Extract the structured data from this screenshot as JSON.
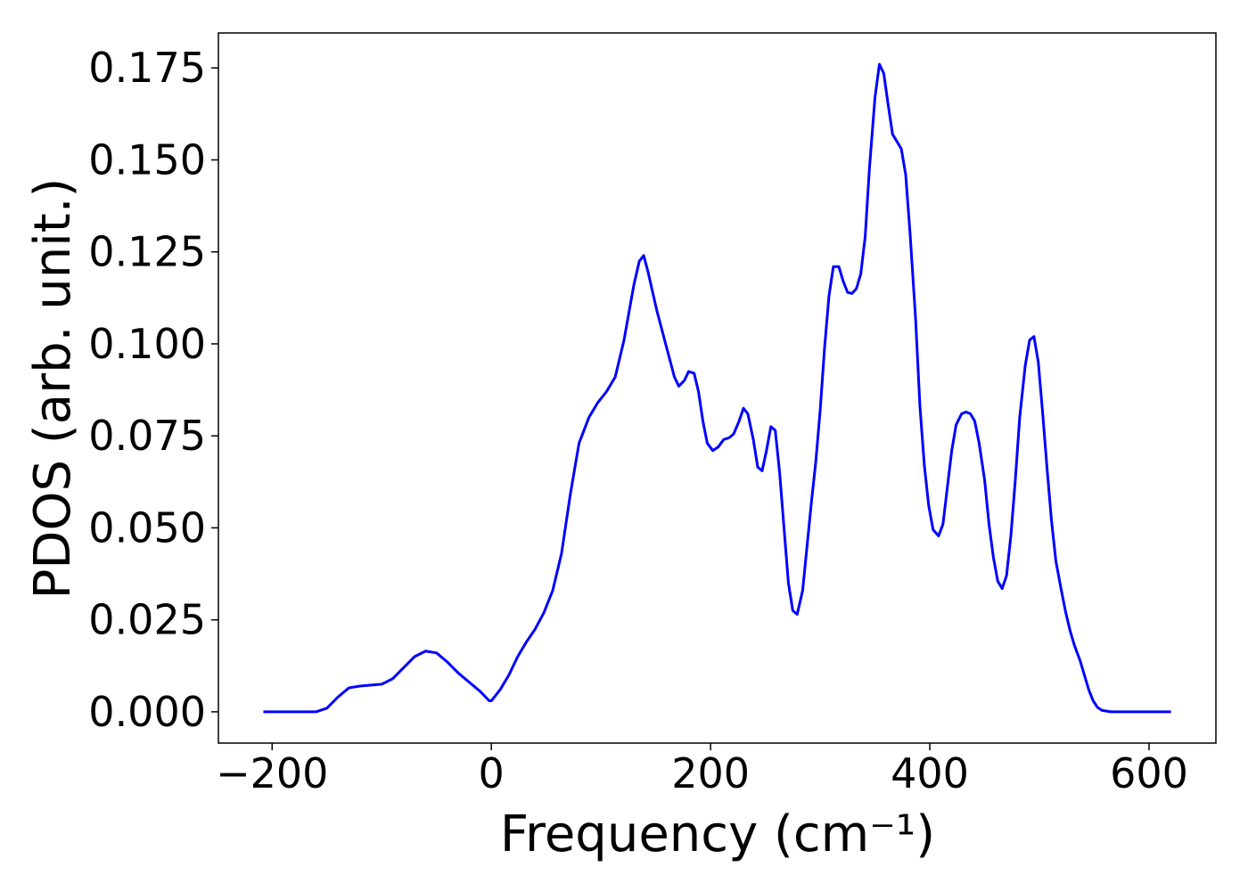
{
  "chart_data": {
    "type": "line",
    "xlabel": "Frequency (cm⁻¹)",
    "ylabel": "PDOS (arb. unit.)",
    "xlim": [
      -249,
      661
    ],
    "ylim": [
      -0.0085,
      0.1845
    ],
    "xticks": [
      {
        "value": -200,
        "label": "−200"
      },
      0,
      200,
      400,
      600
    ],
    "yticks": [
      {
        "value": 0,
        "label": "0.000"
      },
      0.025,
      {
        "value": 0.05,
        "label": "0.050"
      },
      0.075,
      {
        "value": 0.1,
        "label": "0.100"
      },
      0.125,
      {
        "value": 0.15,
        "label": "0.150"
      },
      0.175
    ],
    "grid": false,
    "x": [
      -208,
      -160,
      -150,
      -140,
      -130,
      -120,
      -100,
      -90,
      -80,
      -70,
      -60,
      -50,
      -40,
      -30,
      -20,
      -10,
      -2,
      0,
      8,
      16,
      24,
      32,
      40,
      48,
      56,
      64,
      72,
      80,
      89,
      97,
      105,
      113,
      121,
      130,
      135,
      139,
      143,
      151,
      159,
      167,
      171,
      176,
      180,
      185,
      189,
      193,
      197,
      202,
      207,
      212,
      217,
      221,
      226,
      230,
      234,
      239,
      243,
      247,
      251,
      255,
      259,
      263,
      267,
      271,
      275,
      279,
      284,
      288,
      292,
      296,
      300,
      304,
      308,
      312,
      317,
      321,
      325,
      329,
      333,
      337,
      341,
      345,
      350,
      354,
      358,
      362,
      366,
      370,
      374,
      378,
      382,
      387,
      391,
      395,
      399,
      403,
      408,
      412,
      416,
      420,
      424,
      429,
      433,
      437,
      441,
      445,
      450,
      454,
      458,
      462,
      466,
      470,
      474,
      478,
      482,
      487,
      491,
      495,
      499,
      503,
      507,
      511,
      515,
      520,
      524,
      528,
      532,
      537,
      541,
      545,
      549,
      553,
      557,
      565,
      620
    ],
    "series": [
      {
        "color": "#0000ff",
        "values": [
          0,
          0,
          0.001,
          0.004,
          0.0065,
          0.007,
          0.0075,
          0.009,
          0.012,
          0.015,
          0.0165,
          0.016,
          0.0135,
          0.0105,
          0.008,
          0.0055,
          0.003,
          0.003,
          0.006,
          0.01,
          0.015,
          0.019,
          0.0225,
          0.027,
          0.033,
          0.043,
          0.059,
          0.073,
          0.08,
          0.084,
          0.087,
          0.091,
          0.101,
          0.116,
          0.1225,
          0.124,
          0.1195,
          0.109,
          0.1,
          0.091,
          0.0885,
          0.09,
          0.0925,
          0.092,
          0.087,
          0.079,
          0.073,
          0.071,
          0.072,
          0.074,
          0.0745,
          0.0755,
          0.079,
          0.0825,
          0.081,
          0.074,
          0.0665,
          0.0655,
          0.071,
          0.0775,
          0.0765,
          0.065,
          0.05,
          0.035,
          0.0275,
          0.0265,
          0.033,
          0.045,
          0.057,
          0.068,
          0.082,
          0.099,
          0.113,
          0.121,
          0.121,
          0.117,
          0.114,
          0.1137,
          0.115,
          0.119,
          0.129,
          0.148,
          0.167,
          0.176,
          0.1735,
          0.165,
          0.157,
          0.155,
          0.153,
          0.146,
          0.13,
          0.107,
          0.083,
          0.067,
          0.056,
          0.0495,
          0.0478,
          0.051,
          0.061,
          0.071,
          0.078,
          0.081,
          0.0815,
          0.081,
          0.079,
          0.073,
          0.063,
          0.051,
          0.042,
          0.0355,
          0.0335,
          0.037,
          0.048,
          0.063,
          0.08,
          0.094,
          0.101,
          0.102,
          0.095,
          0.081,
          0.066,
          0.052,
          0.041,
          0.033,
          0.027,
          0.022,
          0.018,
          0.014,
          0.01,
          0.006,
          0.003,
          0.0012,
          0.0004,
          0,
          0
        ]
      }
    ]
  }
}
